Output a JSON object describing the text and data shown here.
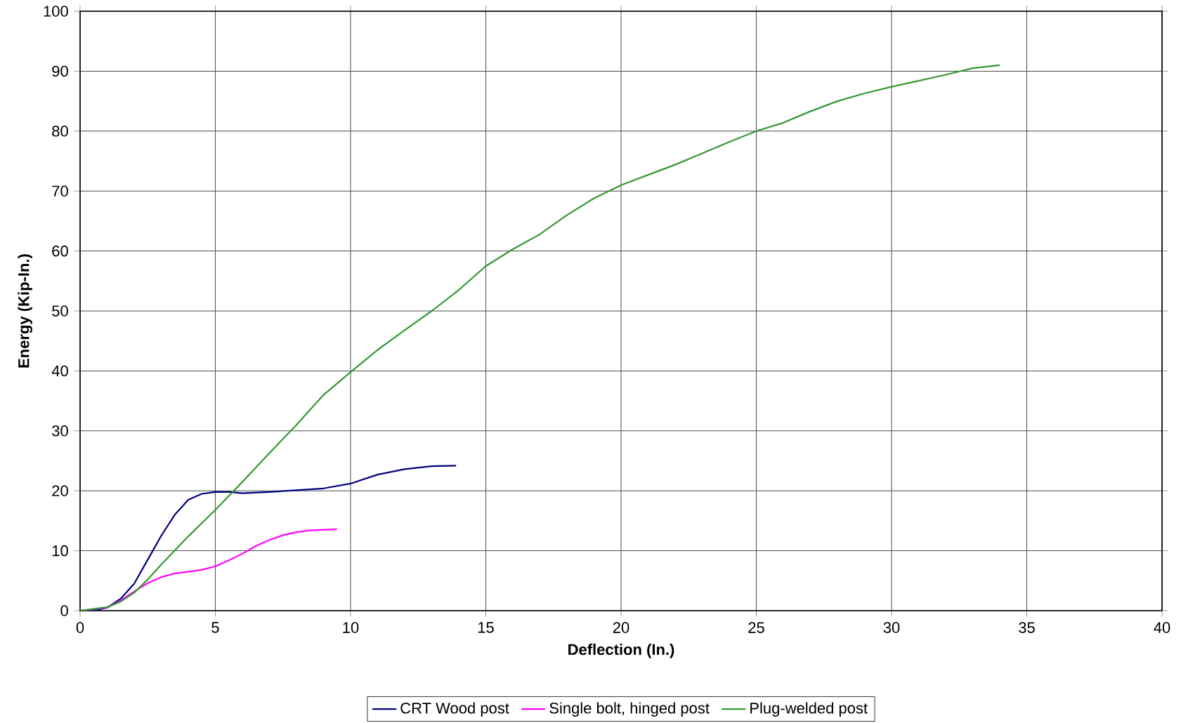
{
  "chart_data": {
    "type": "line",
    "xlabel": "Deflection (In.)",
    "ylabel": "Energy (Kip-In.)",
    "xlim": [
      0,
      40
    ],
    "xticks": [
      0,
      5,
      10,
      15,
      20,
      25,
      30,
      35,
      40
    ],
    "ylim": [
      0,
      100
    ],
    "yticks": [
      0,
      10,
      20,
      30,
      40,
      50,
      60,
      70,
      80,
      90,
      100
    ],
    "grid": true,
    "legend": "bottom",
    "marker": "none",
    "line_style": "solid",
    "series": [
      {
        "name": "CRT Wood post",
        "color": "#000080",
        "x": [
          0,
          0.5,
          1,
          1.5,
          2,
          2.5,
          3,
          3.5,
          4,
          4.5,
          5,
          5.5,
          6,
          7,
          8,
          9,
          10,
          11,
          12,
          13,
          13.9
        ],
        "values": [
          0,
          0,
          0.5,
          2,
          4.5,
          8.5,
          12.5,
          16,
          18.5,
          19.5,
          19.8,
          19.8,
          19.6,
          19.8,
          20.1,
          20.4,
          21.2,
          22.7,
          23.6,
          24.1,
          24.2
        ]
      },
      {
        "name": "Single bolt, hinged post",
        "color": "#ff00ff",
        "x": [
          0,
          1,
          1.5,
          2,
          2.5,
          3,
          3.5,
          4,
          4.5,
          5,
          5.5,
          6,
          6.5,
          7,
          7.5,
          8,
          8.5,
          9,
          9.5
        ],
        "values": [
          0,
          0.5,
          1.7,
          3.2,
          4.6,
          5.6,
          6.2,
          6.5,
          6.8,
          7.4,
          8.4,
          9.5,
          10.8,
          11.8,
          12.6,
          13.1,
          13.4,
          13.5,
          13.6
        ]
      },
      {
        "name": "Plug-welded post",
        "color": "#339933",
        "x": [
          0,
          1,
          1.5,
          2,
          2.5,
          3,
          4,
          5,
          6,
          7,
          8,
          9,
          10,
          11,
          12,
          13,
          14,
          15,
          16,
          17,
          18,
          19,
          20,
          21,
          22,
          23,
          24,
          25,
          26,
          27,
          28,
          29,
          30,
          31,
          32,
          33,
          34
        ],
        "values": [
          0,
          0.6,
          1.5,
          3,
          5.2,
          7.7,
          12.4,
          16.8,
          21.5,
          26.3,
          31,
          36,
          39.8,
          43.5,
          46.8,
          50,
          53.5,
          57.5,
          60.3,
          62.8,
          66,
          68.8,
          71,
          72.7,
          74.4,
          76.3,
          78.2,
          80,
          81.4,
          83.3,
          85,
          86.3,
          87.4,
          88.4,
          89.4,
          90.5,
          91
        ]
      }
    ]
  }
}
